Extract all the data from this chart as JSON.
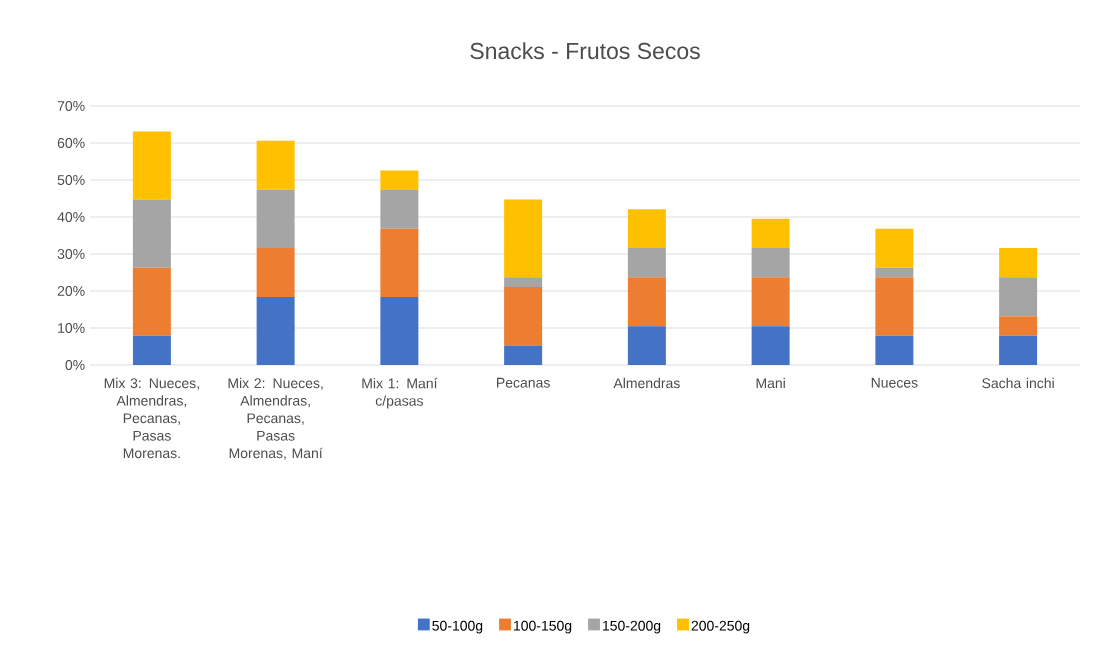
{
  "chart_data": {
    "type": "bar",
    "title": "Snacks - Frutos Secos",
    "stacked": true,
    "grid": "y",
    "legend": "bottom",
    "categories": [
      "Mix 3: Nueces, Almendras, Pecanas, Pasas Morenas.",
      "Mix 2: Nueces, Almendras, Pecanas, Pasas Morenas, Maní",
      "Mix 1: Maní c/pasas",
      "Pecanas",
      "Almendras",
      "Mani",
      "Nueces",
      "Sacha inchi"
    ],
    "series": [
      {
        "name": "50-100g",
        "color": "#4472c4",
        "values": [
          7.9,
          18.4,
          18.4,
          5.3,
          10.5,
          10.5,
          7.9,
          7.9
        ]
      },
      {
        "name": "100-150g",
        "color": "#ed7d31",
        "values": [
          18.4,
          13.2,
          18.4,
          15.8,
          13.2,
          13.2,
          15.8,
          5.3
        ]
      },
      {
        "name": "150-200g",
        "color": "#a5a5a5",
        "values": [
          18.4,
          15.8,
          10.5,
          2.6,
          7.9,
          7.9,
          2.6,
          10.5
        ]
      },
      {
        "name": "200-250g",
        "color": "#ffc000",
        "values": [
          18.4,
          13.2,
          5.3,
          21.0,
          10.5,
          7.9,
          10.5,
          7.9
        ]
      }
    ],
    "ylim": [
      0,
      70
    ],
    "yticks": [
      {
        "value": 0,
        "label": "0%"
      },
      {
        "value": 10,
        "label": "10%"
      },
      {
        "value": 20,
        "label": "20%"
      },
      {
        "value": 30,
        "label": "30%"
      },
      {
        "value": 40,
        "label": "40%"
      },
      {
        "value": 50,
        "label": "50%"
      },
      {
        "value": 60,
        "label": "60%"
      },
      {
        "value": 70,
        "label": "70%"
      }
    ]
  }
}
